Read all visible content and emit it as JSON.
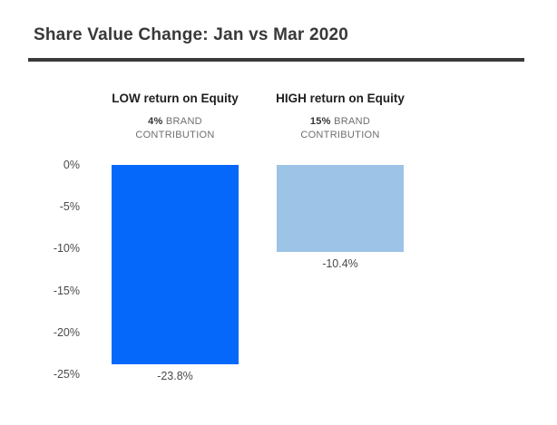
{
  "title": "Share Value Change: Jan vs Mar 2020",
  "groups": [
    {
      "header": "LOW return on Equity",
      "brand_value": "4%",
      "brand_label": "BRAND CONTRIBUTION"
    },
    {
      "header": "HIGH return on Equity",
      "brand_value": "15%",
      "brand_label": "BRAND CONTRIBUTION"
    }
  ],
  "y_axis": {
    "ticks": [
      "0%",
      "-5%",
      "-10%",
      "-15%",
      "-20%",
      "-25%"
    ]
  },
  "chart_data": {
    "type": "bar",
    "title": "Share Value Change: Jan vs Mar 2020",
    "categories": [
      "LOW return on Equity",
      "HIGH return on Equity"
    ],
    "values": [
      -23.8,
      -10.4
    ],
    "bar_labels": [
      "-23.8%",
      "-10.4%"
    ],
    "annotations": [
      "4% BRAND CONTRIBUTION",
      "15% BRAND CONTRIBUTION"
    ],
    "xlabel": "",
    "ylabel": "",
    "ylim": [
      -25,
      0
    ],
    "tick_step": 5,
    "grid": false,
    "legend": false,
    "bar_colors": [
      "#0668fa",
      "#9dc3e6"
    ]
  }
}
